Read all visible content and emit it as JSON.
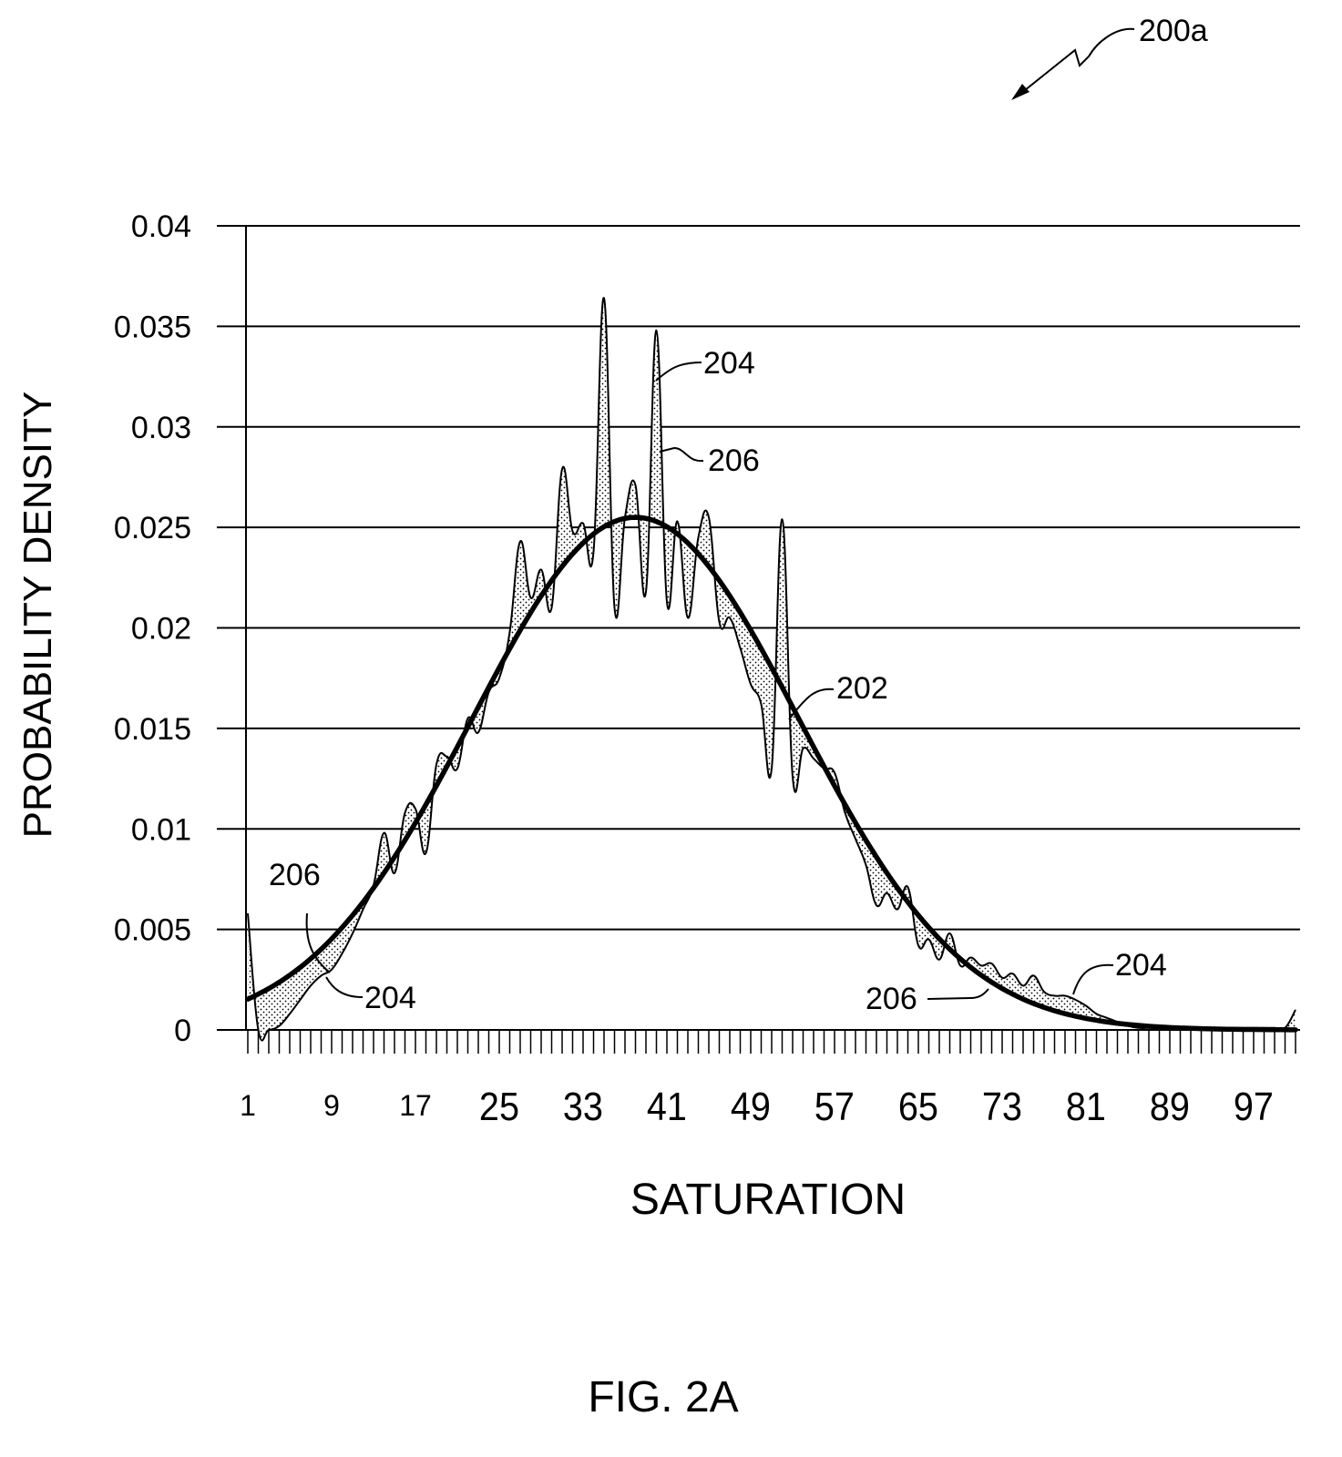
{
  "figure_ref": "200a",
  "figure_caption": "FIG. 2A",
  "chart_data": {
    "type": "line",
    "title": "",
    "xlabel": "SATURATION",
    "ylabel": "PROBABILITY DENSITY",
    "xlim": [
      1,
      101
    ],
    "ylim": [
      0,
      0.04
    ],
    "grid": "horizontal",
    "x_tick_labels": [
      "1",
      "9",
      "17",
      "25",
      "33",
      "41",
      "49",
      "57",
      "65",
      "73",
      "81",
      "89",
      "97"
    ],
    "x_tick_values": [
      1,
      9,
      17,
      25,
      33,
      41,
      49,
      57,
      65,
      73,
      81,
      89,
      97
    ],
    "y_tick_labels": [
      "0",
      "0.005",
      "0.01",
      "0.015",
      "0.02",
      "0.025",
      "0.03",
      "0.035",
      "0.04"
    ],
    "y_tick_values": [
      0,
      0.005,
      0.01,
      0.015,
      0.02,
      0.025,
      0.03,
      0.035,
      0.04
    ],
    "series": [
      {
        "name": "204",
        "kind": "empirical",
        "x_start": 1,
        "values": [
          0.0058,
          0,
          0,
          0.0002,
          0.0008,
          0.0015,
          0.0022,
          0.0027,
          0.003,
          0.0038,
          0.0048,
          0.006,
          0.0072,
          0.0098,
          0.0078,
          0.0108,
          0.011,
          0.0088,
          0.0132,
          0.0136,
          0.013,
          0.0155,
          0.0148,
          0.0168,
          0.0175,
          0.0198,
          0.0243,
          0.0215,
          0.0229,
          0.021,
          0.0279,
          0.0248,
          0.0252,
          0.0238,
          0.0364,
          0.021,
          0.0255,
          0.0271,
          0.0218,
          0.0348,
          0.0213,
          0.0253,
          0.0205,
          0.0245,
          0.0255,
          0.0203,
          0.0205,
          0.019,
          0.0172,
          0.0162,
          0.013,
          0.0254,
          0.0126,
          0.014,
          0.0135,
          0.013,
          0.0128,
          0.0108,
          0.0095,
          0.0082,
          0.0062,
          0.0068,
          0.006,
          0.0071,
          0.0042,
          0.0045,
          0.0035,
          0.0048,
          0.0032,
          0.0036,
          0.0032,
          0.0033,
          0.0026,
          0.0028,
          0.0022,
          0.0027,
          0.0019,
          0.0017,
          0.0017,
          0.0015,
          0.0012,
          0.0008,
          0.0006,
          0.0004,
          0.0002,
          0.0001,
          0.0001,
          0.0001,
          0.0001,
          0.0001,
          0.0001,
          0.0001,
          0.0001,
          0.0001,
          0.0001,
          0.0001,
          0.0001,
          0.0001,
          0.0001,
          0.0001,
          0.001
        ]
      },
      {
        "name": "202",
        "kind": "fitted normal",
        "mean": 38,
        "sd": 15.6,
        "peak": 0.0255
      }
    ],
    "shaded_region": "206",
    "annotations": [
      {
        "label": "204"
      },
      {
        "label": "206"
      },
      {
        "label": "202"
      },
      {
        "label": "206"
      },
      {
        "label": "204"
      },
      {
        "label": "206"
      },
      {
        "label": "204"
      }
    ]
  }
}
